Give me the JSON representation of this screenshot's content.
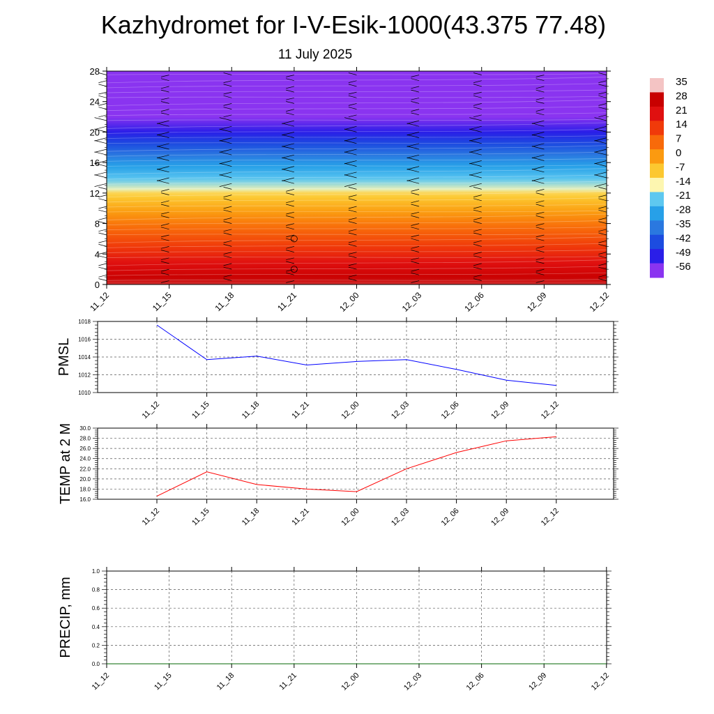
{
  "title": "Kazhydromet for I-V-Esik-1000(43.375 77.48)",
  "subtitle": "11 July 2025",
  "time_labels": [
    "11_12",
    "11_15",
    "11_18",
    "11_21",
    "12_00",
    "12_03",
    "12_06",
    "12_09",
    "12_12"
  ],
  "chart_data": [
    {
      "type": "heatmap",
      "title": "",
      "xlabel": "",
      "ylabel": "",
      "x": [
        "11_12",
        "11_15",
        "11_18",
        "11_21",
        "12_00",
        "12_03",
        "12_06",
        "12_09",
        "12_12"
      ],
      "ylim": [
        0,
        28
      ],
      "yticks": [
        0,
        4,
        8,
        12,
        16,
        20,
        24,
        28
      ],
      "colorbar": {
        "labels": [
          "35",
          "28",
          "21",
          "14",
          "7",
          "0",
          "-7",
          "-14",
          "-21",
          "-28",
          "-35",
          "-42",
          "-49",
          "-56"
        ],
        "colors": [
          "#f4c4c4",
          "#c80000",
          "#e01010",
          "#f03a0a",
          "#f86a0a",
          "#fb9a10",
          "#fcc830",
          "#fdf6b0",
          "#5ec8f0",
          "#27a0e8",
          "#2a78e0",
          "#1c4ce0",
          "#2a1ee8",
          "#8a34f0"
        ]
      },
      "temperature_profile": [
        {
          "level": 0,
          "value": 30
        },
        {
          "level": 2,
          "value": 24
        },
        {
          "level": 4,
          "value": 17
        },
        {
          "level": 6,
          "value": 11
        },
        {
          "level": 8,
          "value": 5
        },
        {
          "level": 10,
          "value": -2
        },
        {
          "level": 12,
          "value": -9
        },
        {
          "level": 12.5,
          "value": -15
        },
        {
          "level": 14,
          "value": -22
        },
        {
          "level": 16,
          "value": -30
        },
        {
          "level": 18,
          "value": -40
        },
        {
          "level": 20,
          "value": -49
        },
        {
          "level": 22,
          "value": -56
        },
        {
          "level": 25,
          "value": -58
        },
        {
          "level": 28,
          "value": -60
        }
      ],
      "markers": [
        {
          "x": "11_21",
          "level": 6
        },
        {
          "x": "11_21",
          "level": 2
        }
      ]
    },
    {
      "type": "line",
      "ylabel": "PMSL",
      "ylim": [
        1010,
        1018
      ],
      "yticks": [
        "1010",
        "1012",
        "1014",
        "1016",
        "1018"
      ],
      "categories": [
        "11_12",
        "11_15",
        "11_18",
        "11_21",
        "12_00",
        "12_03",
        "12_06",
        "12_09",
        "12_12"
      ],
      "series": [
        {
          "values": [
            1017.6,
            1013.7,
            1014.1,
            1013.1,
            1013.5,
            1013.7,
            1012.6,
            1011.4,
            1010.8
          ],
          "color": "#0000ff"
        }
      ],
      "grid": true
    },
    {
      "type": "line",
      "ylabel": "TEMP at 2 M",
      "ylim": [
        16,
        30
      ],
      "yticks": [
        "16.0",
        "18.0",
        "20.0",
        "22.0",
        "24.0",
        "26.0",
        "28.0",
        "30.0"
      ],
      "categories": [
        "11_12",
        "11_15",
        "11_18",
        "11_21",
        "12_00",
        "12_03",
        "12_06",
        "12_09",
        "12_12"
      ],
      "series": [
        {
          "values": [
            16.6,
            21.4,
            18.9,
            18.0,
            17.5,
            22.0,
            25.2,
            27.5,
            28.3
          ],
          "color": "#ff0000"
        }
      ],
      "grid": true
    },
    {
      "type": "line",
      "ylabel": "PRECIP, mm",
      "ylim": [
        0,
        1
      ],
      "yticks": [
        "0.0",
        "0.2",
        "0.4",
        "0.6",
        "0.8",
        "1.0"
      ],
      "categories": [
        "11_12",
        "11_15",
        "11_18",
        "11_21",
        "12_00",
        "12_03",
        "12_06",
        "12_09",
        "12_12"
      ],
      "series": [
        {
          "values": [
            0,
            0,
            0,
            0,
            0,
            0,
            0,
            0,
            0
          ],
          "color": "#006400"
        }
      ],
      "grid": true
    }
  ]
}
